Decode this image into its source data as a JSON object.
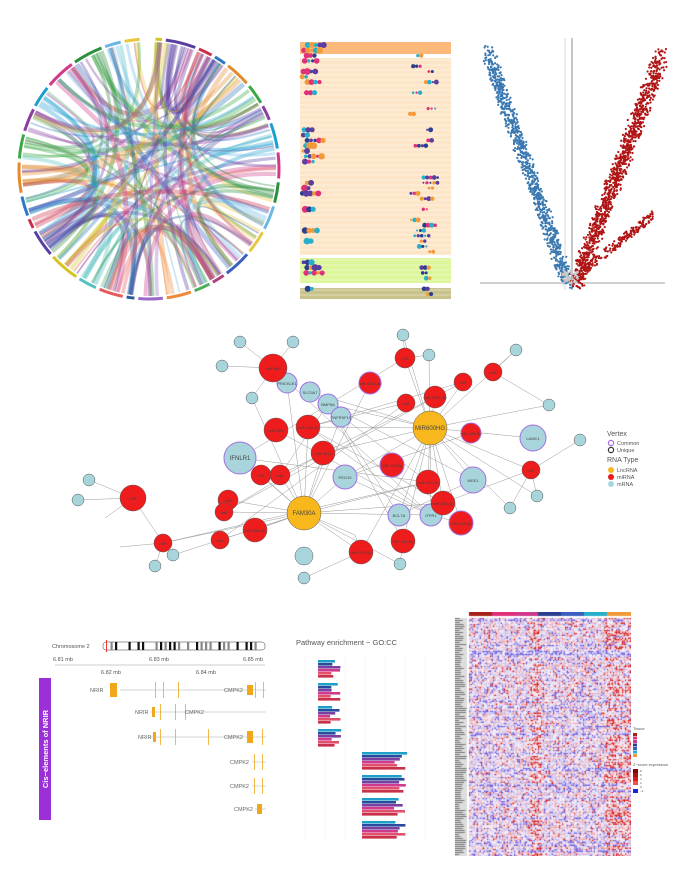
{
  "chord": {
    "colors": [
      "#d4c520",
      "#5a3fa0",
      "#c9304a",
      "#2f78c4",
      "#e38a2a",
      "#39a845",
      "#8a3fa0",
      "#1e9ed0",
      "#d13a8a",
      "#2b8f3c",
      "#6bb8e6",
      "#e8c640",
      "#3a5fbf",
      "#b04080",
      "#4cae5b",
      "#f08a3a",
      "#9b6ac8",
      "#2a5a9c",
      "#e65a5a",
      "#55c0c0"
    ]
  },
  "dotplot": {
    "band_colors": [
      "#fbb97c",
      "#fde6c8",
      "#dcf79a",
      "#c8c38c"
    ],
    "dot_colors": [
      "#e0307a",
      "#2a3f8f",
      "#27b0c9",
      "#5a3fa0",
      "#f29a3a"
    ]
  },
  "volcano": {
    "down_color": "#3a78b0",
    "up_color": "#b01515",
    "ns_color": "#c8c8c8"
  },
  "network": {
    "legend": {
      "vertex_title": "Vertex",
      "common": "Common",
      "unique": "Unique",
      "rna_title": "RNA Type",
      "lnc": "LncRNA",
      "mirna": "miRNA",
      "mrna": "mRNA"
    },
    "colors": {
      "lnc": "#f7b71d",
      "mirna": "#ee1c1c",
      "mrna": "#a8d4dc",
      "common": "#a16fe0",
      "unique": "#333333"
    },
    "nodes": [
      {
        "label": "FAM30A",
        "type": "lnc"
      },
      {
        "label": "MIR600HG",
        "type": "lnc"
      },
      {
        "label": "IFNLR1",
        "type": "mrna",
        "vertex": "common"
      },
      {
        "label": "WEE1",
        "type": "mrna",
        "vertex": "common"
      },
      {
        "label": "LAMC1",
        "type": "mrna",
        "vertex": "common"
      },
      {
        "label": "BCL7A",
        "type": "mrna",
        "vertex": "common"
      },
      {
        "label": "ITPR1",
        "type": "mrna",
        "vertex": "common"
      },
      {
        "label": "PEG10",
        "type": "mrna",
        "vertex": "common"
      },
      {
        "label": "PRICKLE1",
        "type": "mrna",
        "vertex": "common"
      },
      {
        "label": "SLC9A7",
        "type": "mrna",
        "vertex": "common"
      },
      {
        "label": "BMP6A",
        "type": "mrna",
        "vertex": "common"
      },
      {
        "label": "TNFRSF19",
        "type": "mrna",
        "vertex": "common"
      },
      {
        "label": "miR-665",
        "type": "mirna"
      },
      {
        "label": "miR-655",
        "type": "mirna"
      },
      {
        "label": "miR-455-3p",
        "type": "mirna"
      },
      {
        "label": "miR-3612",
        "type": "mirna"
      },
      {
        "label": "miR-5612-3p",
        "type": "mirna",
        "vertex": "common"
      },
      {
        "label": "miR-3667-3p",
        "type": "mirna"
      },
      {
        "label": "miR-720-5p",
        "type": "mirna",
        "vertex": "common"
      },
      {
        "label": "miR-483-3p",
        "type": "mirna"
      },
      {
        "label": "miR-15a-5p",
        "type": "mirna"
      },
      {
        "label": "miR-155-5p",
        "type": "mirna",
        "vertex": "common"
      },
      {
        "label": "miR-211-5p",
        "type": "mirna"
      },
      {
        "label": "miR-204-5p",
        "type": "mirna"
      },
      {
        "label": "miR-34a-5p",
        "type": "mirna"
      },
      {
        "label": "miR-196-5p",
        "type": "mirna",
        "vertex": "common"
      },
      {
        "label": "miR",
        "type": "mirna"
      },
      {
        "label": "miR",
        "type": "mirna"
      },
      {
        "label": "miR",
        "type": "mirna"
      },
      {
        "label": "miR",
        "type": "mirna"
      },
      {
        "label": "miR",
        "type": "mirna"
      },
      {
        "label": "miR",
        "type": "mirna"
      },
      {
        "label": "miR",
        "type": "mirna"
      },
      {
        "label": "miR",
        "type": "mirna"
      },
      {
        "label": "miR",
        "type": "mirna"
      },
      {
        "label": "miR",
        "type": "mirna"
      },
      {
        "label": "miR",
        "type": "mirna"
      },
      {
        "label": "miR",
        "type": "mirna"
      },
      {
        "label": "",
        "type": "mrna"
      },
      {
        "label": "",
        "type": "mrna"
      },
      {
        "label": "",
        "type": "mrna"
      },
      {
        "label": "",
        "type": "mrna"
      },
      {
        "label": "",
        "type": "mrna"
      },
      {
        "label": "",
        "type": "mrna"
      },
      {
        "label": "",
        "type": "mrna"
      },
      {
        "label": "",
        "type": "mrna"
      },
      {
        "label": "",
        "type": "mrna"
      },
      {
        "label": "",
        "type": "mrna"
      },
      {
        "label": "",
        "type": "mrna"
      },
      {
        "label": "",
        "type": "mrna"
      },
      {
        "label": "",
        "type": "mrna"
      },
      {
        "label": "",
        "type": "mrna"
      },
      {
        "label": "",
        "type": "mrna"
      },
      {
        "label": "",
        "type": "mrna"
      },
      {
        "label": "",
        "type": "mrna"
      },
      {
        "label": "",
        "type": "mrna"
      }
    ]
  },
  "genome": {
    "chromosome": "Chromosome 2",
    "ticks_top": [
      "6.81 mb",
      "6.83 mb",
      "6.85 mb"
    ],
    "ticks_bottom": [
      "6.82 mb",
      "6.84 mb"
    ],
    "side_label": "Cis−elements of NRIR",
    "side_color": "#9b30d9",
    "gene_color": "#f0a81a",
    "tracks": [
      {
        "genes": [
          "NRIR",
          "CMPK2"
        ]
      },
      {
        "genes": [
          "NRIR",
          "CMPK2"
        ]
      },
      {
        "genes": [
          "NRIR",
          "CMPK2"
        ]
      },
      {
        "genes": [
          "CMPK2"
        ]
      },
      {
        "genes": [
          "CMPK2"
        ]
      },
      {
        "genes": [
          "CMPK2"
        ]
      }
    ]
  },
  "pathway": {
    "title": "Pathway enrichment − GO:CC",
    "colors": [
      "#1e9ec8",
      "#2a4a9c",
      "#7a3fa0",
      "#d13a8a",
      "#e0506a",
      "#c9304a"
    ]
  },
  "heatmap": {
    "tissue_colors": [
      "#a8201a",
      "#e0307a",
      "#d13a8a",
      "#2a3f8f",
      "#3a5fbf",
      "#27b0c9",
      "#f29a3a"
    ],
    "legend_tissue": "Tissue",
    "legend_z": "Z−score expression",
    "z_ticks": [
      "8",
      "6",
      "4",
      "2",
      "0",
      "−2"
    ]
  }
}
